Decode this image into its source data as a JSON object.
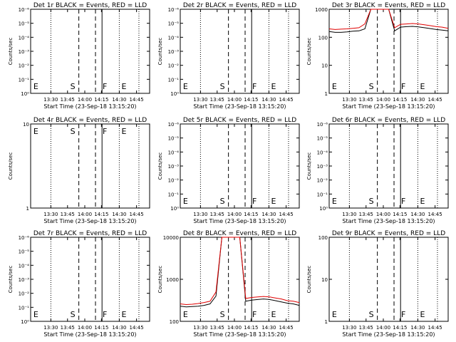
{
  "chart_data": [
    {
      "type": "line",
      "title": "Det 1r BLACK = Events, RED = LLD",
      "ylabel": "Counts/sec",
      "xlabel": "Start Time (23-Sep-18 13:15:20)",
      "yticks": [
        "10⁰",
        "10⁻¹",
        "10⁻²",
        "10⁻³",
        "10⁻⁴",
        "10⁻⁵",
        "10⁻⁶"
      ],
      "xticks": [
        "13:30",
        "13:45",
        "14:00",
        "14:15",
        "14:30",
        "14:45"
      ],
      "markers": [
        "E",
        "S",
        "F",
        "E"
      ],
      "series": []
    },
    {
      "type": "line",
      "title": "Det 2r BLACK = Events, RED = LLD",
      "ylabel": "Counts/sec",
      "xlabel": "Start Time (23-Sep-18 13:15:20)",
      "yticks": [
        "10⁰",
        "10⁻¹",
        "10⁻²",
        "10⁻³",
        "10⁻⁴",
        "10⁻⁵",
        "10⁻⁶"
      ],
      "xticks": [
        "13:30",
        "13:45",
        "14:00",
        "14:15",
        "14:30",
        "14:45"
      ],
      "markers": [
        "E",
        "S",
        "F",
        "E"
      ],
      "series": []
    },
    {
      "type": "line",
      "title": "Det 3r BLACK = Events, RED = LLD",
      "ylabel": "Counts/sec",
      "xlabel": "Start Time (23-Sep-18 13:15:20)",
      "yticks": [
        "1",
        "10",
        "100",
        "1000"
      ],
      "xticks": [
        "13:30",
        "13:45",
        "14:00",
        "14:15",
        "14:30",
        "14:45"
      ],
      "markers": [
        "E",
        "S",
        "F",
        "E"
      ],
      "series": [
        {
          "color": "#000000",
          "x": [
            0,
            0.05,
            0.1,
            0.15,
            0.2,
            0.25,
            0.3,
            0.35,
            0.4,
            0.45,
            0.5,
            0.55,
            0.6,
            0.65,
            0.7,
            0.75,
            0.8,
            0.85,
            0.9,
            0.95,
            1.0
          ],
          "y": [
            160,
            150,
            150,
            155,
            165,
            170,
            200,
            1000,
            1000,
            1000,
            1000,
            170,
            230,
            240,
            245,
            235,
            220,
            205,
            190,
            180,
            170
          ]
        },
        {
          "color": "#e00000",
          "x": [
            0,
            0.05,
            0.1,
            0.15,
            0.2,
            0.25,
            0.3,
            0.35,
            0.4,
            0.45,
            0.5,
            0.55,
            0.6,
            0.65,
            0.7,
            0.75,
            0.8,
            0.85,
            0.9,
            0.95,
            1.0
          ],
          "y": [
            200,
            190,
            195,
            200,
            210,
            220,
            300,
            1000,
            1000,
            1000,
            1000,
            220,
            290,
            300,
            310,
            300,
            280,
            260,
            240,
            230,
            210
          ]
        }
      ]
    },
    {
      "type": "line",
      "title": "Det 4r BLACK = Events, RED = LLD",
      "ylabel": "Counts/sec",
      "xlabel": "Start Time (23-Sep-18 13:15:20)",
      "yticks": [
        "1",
        "10"
      ],
      "xticks": [
        "13:30",
        "13:45",
        "14:00",
        "14:15",
        "14:30",
        "14:45"
      ],
      "markers": [
        "E",
        "S",
        "F",
        "E"
      ],
      "series": []
    },
    {
      "type": "line",
      "title": "Det 5r BLACK = Events, RED = LLD",
      "ylabel": "Counts/sec",
      "xlabel": "Start Time (23-Sep-18 13:15:20)",
      "yticks": [
        "10⁰",
        "10⁻¹",
        "10⁻²",
        "10⁻³",
        "10⁻⁴",
        "10⁻⁵",
        "10⁻⁶"
      ],
      "xticks": [
        "13:30",
        "13:45",
        "14:00",
        "14:15",
        "14:30",
        "14:45"
      ],
      "markers": [
        "E",
        "S",
        "F",
        "E"
      ],
      "series": []
    },
    {
      "type": "line",
      "title": "Det 6r BLACK = Events, RED = LLD",
      "ylabel": "Counts/sec",
      "xlabel": "Start Time (23-Sep-18 13:15:20)",
      "yticks": [
        "10⁰",
        "10⁻¹",
        "10⁻²",
        "10⁻³",
        "10⁻⁴",
        "10⁻⁵",
        "10⁻⁶"
      ],
      "xticks": [
        "13:30",
        "13:45",
        "14:00",
        "14:15",
        "14:30",
        "14:45"
      ],
      "markers": [
        "E",
        "S",
        "F",
        "E"
      ],
      "series": []
    },
    {
      "type": "line",
      "title": "Det 7r BLACK = Events, RED = LLD",
      "ylabel": "Counts/sec",
      "xlabel": "Start Time (23-Sep-18 13:15:20)",
      "yticks": [
        "10⁰",
        "10⁻¹",
        "10⁻²",
        "10⁻³",
        "10⁻⁴",
        "10⁻⁵",
        "10⁻⁶"
      ],
      "xticks": [
        "13:30",
        "13:45",
        "14:00",
        "14:15",
        "14:30",
        "14:45"
      ],
      "markers": [
        "E",
        "S",
        "F",
        "E"
      ],
      "series": []
    },
    {
      "type": "line",
      "title": "Det 8r BLACK = Events, RED = LLD",
      "ylabel": "Counts/sec",
      "xlabel": "Start Time (23-Sep-18 13:15:20)",
      "yticks": [
        "100",
        "1000",
        "10000"
      ],
      "xticks": [
        "13:30",
        "13:45",
        "14:00",
        "14:15",
        "14:30",
        "14:45"
      ],
      "markers": [
        "E",
        "S",
        "F",
        "E"
      ],
      "series": [
        {
          "color": "#000000",
          "x": [
            0,
            0.05,
            0.1,
            0.15,
            0.2,
            0.25,
            0.3,
            0.35,
            0.4,
            0.45,
            0.5,
            0.55,
            0.6,
            0.65,
            0.7,
            0.75,
            0.8,
            0.85,
            0.9,
            0.95,
            1.0
          ],
          "y": [
            230,
            220,
            225,
            230,
            240,
            260,
            400,
            10000,
            10000,
            10000,
            10000,
            300,
            320,
            330,
            340,
            330,
            310,
            290,
            270,
            260,
            240
          ]
        },
        {
          "color": "#e00000",
          "x": [
            0,
            0.05,
            0.1,
            0.15,
            0.2,
            0.25,
            0.3,
            0.35,
            0.4,
            0.45,
            0.5,
            0.55,
            0.6,
            0.65,
            0.7,
            0.75,
            0.8,
            0.85,
            0.9,
            0.95,
            1.0
          ],
          "y": [
            260,
            250,
            255,
            265,
            280,
            300,
            500,
            10000,
            10000,
            10000,
            10000,
            350,
            370,
            380,
            390,
            380,
            360,
            340,
            310,
            300,
            280
          ]
        }
      ]
    },
    {
      "type": "line",
      "title": "Det 9r BLACK = Events, RED = LLD",
      "ylabel": "Counts/sec",
      "xlabel": "Start Time (23-Sep-18 13:15:20)",
      "yticks": [
        "1",
        "10",
        "100"
      ],
      "xticks": [
        "13:30",
        "13:45",
        "14:00",
        "14:15",
        "14:30",
        "14:45"
      ],
      "markers": [
        "E",
        "S",
        "F",
        "E"
      ],
      "series": []
    }
  ]
}
